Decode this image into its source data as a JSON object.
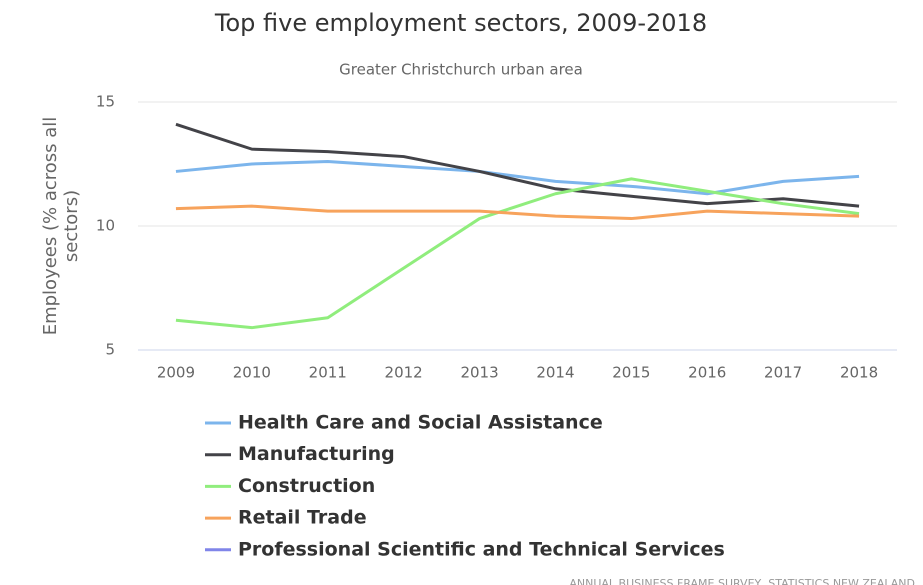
{
  "chart_data": {
    "type": "line",
    "title": "Top five employment sectors, 2009-2018",
    "subtitle": "Greater Christchurch urban area",
    "y_label": "Employees (% across all sectors)",
    "credits": "ANNUAL BUSINESS FRAME SURVEY, STATISTICS NEW ZEALAND",
    "categories": [
      "2009",
      "2010",
      "2011",
      "2012",
      "2013",
      "2014",
      "2015",
      "2016",
      "2017",
      "2018"
    ],
    "series": [
      {
        "name": "Health Care and Social Assistance",
        "color": "#7cb5ec",
        "values": [
          12.2,
          12.5,
          12.6,
          12.4,
          12.2,
          11.8,
          11.6,
          11.3,
          11.8,
          12.0
        ]
      },
      {
        "name": "Manufacturing",
        "color": "#434348",
        "values": [
          14.1,
          13.1,
          13.0,
          12.8,
          12.2,
          11.5,
          11.2,
          10.9,
          11.1,
          10.8
        ]
      },
      {
        "name": "Construction",
        "color": "#90ed7d",
        "values": [
          6.2,
          5.9,
          6.3,
          8.3,
          10.3,
          11.3,
          11.9,
          11.4,
          10.9,
          10.5
        ]
      },
      {
        "name": "Retail Trade",
        "color": "#f7a35c",
        "values": [
          10.7,
          10.8,
          10.6,
          10.6,
          10.6,
          10.4,
          10.3,
          10.6,
          10.5,
          10.4
        ]
      },
      {
        "name": "Professional Scientific and Technical Services",
        "color": "#8085e9",
        "values": [
          null,
          null,
          null,
          null,
          null,
          null,
          null,
          null,
          null,
          null
        ]
      }
    ],
    "ylim": [
      5,
      15
    ],
    "yticks": [
      5,
      10,
      15
    ],
    "grid": true
  }
}
